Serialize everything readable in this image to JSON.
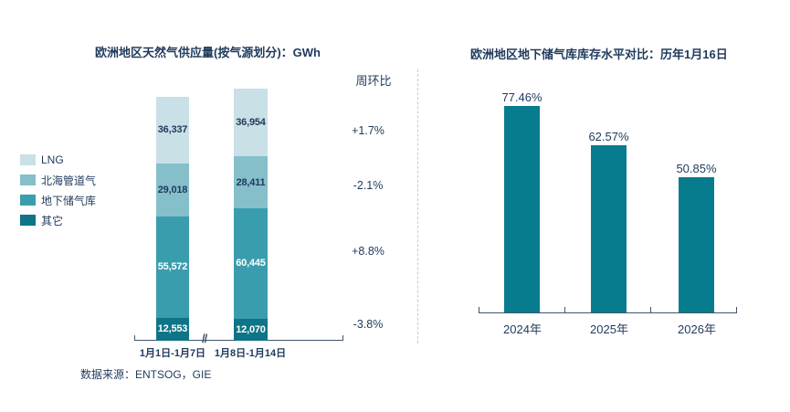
{
  "page": {
    "background": "#ffffff",
    "text_color": "#1f3a5c",
    "axis_color": "#44546a"
  },
  "left_chart": {
    "title": "欧洲地区天然气供应量(按气源划分)：GWh",
    "source_note": "数据来源：ENTSOG，GIE"
  },
  "right_chart": {
    "title": "欧洲地区地下储气库库存水平对比：历年1月16日"
  },
  "chart_data": [
    {
      "type": "bar",
      "stacked": true,
      "title": "欧洲地区天然气供应量(按气源划分)：GWh",
      "unit": "GWh",
      "categories": [
        "1月1日-1月7日",
        "1月8日-1月14日"
      ],
      "series": [
        {
          "name": "其它",
          "color": "#0e7487",
          "label_color": "#ffffff",
          "values": [
            12553,
            12070
          ]
        },
        {
          "name": "地下储气库",
          "color": "#3a9dad",
          "label_color": "#ffffff",
          "values": [
            55572,
            60445
          ]
        },
        {
          "name": "北海管道气",
          "color": "#85bfca",
          "label_color": "#1f3a5c",
          "values": [
            29018,
            28411
          ]
        },
        {
          "name": "LNG",
          "color": "#c9e0e6",
          "label_color": "#1f3a5c",
          "values": [
            36337,
            36954
          ]
        }
      ],
      "legend_order_top_to_bottom": [
        "LNG",
        "北海管道气",
        "地下储气库",
        "其它"
      ],
      "legend": [
        {
          "label": "LNG",
          "color": "#c9e0e6"
        },
        {
          "label": "北海管道气",
          "color": "#85bfca"
        },
        {
          "label": "地下储气库",
          "color": "#3a9dad"
        },
        {
          "label": "其它",
          "color": "#0e7487"
        }
      ],
      "wow_column": {
        "header": "周环比",
        "values": [
          "+1.7%",
          "-2.1%",
          "+8.8%",
          "-3.8%"
        ]
      },
      "axis_break": "//",
      "legend_position": "left",
      "grid": false
    },
    {
      "type": "bar",
      "title": "欧洲地区地下储气库库存水平对比：历年1月16日",
      "categories": [
        "2024年",
        "2025年",
        "2026年"
      ],
      "values": [
        77.46,
        62.57,
        50.85
      ],
      "labels": [
        "77.46%",
        "62.57%",
        "50.85%"
      ],
      "bar_color": "#077c8e",
      "ylabel": "",
      "xlabel": "",
      "ylim": [
        0,
        85
      ],
      "grid": false
    }
  ]
}
